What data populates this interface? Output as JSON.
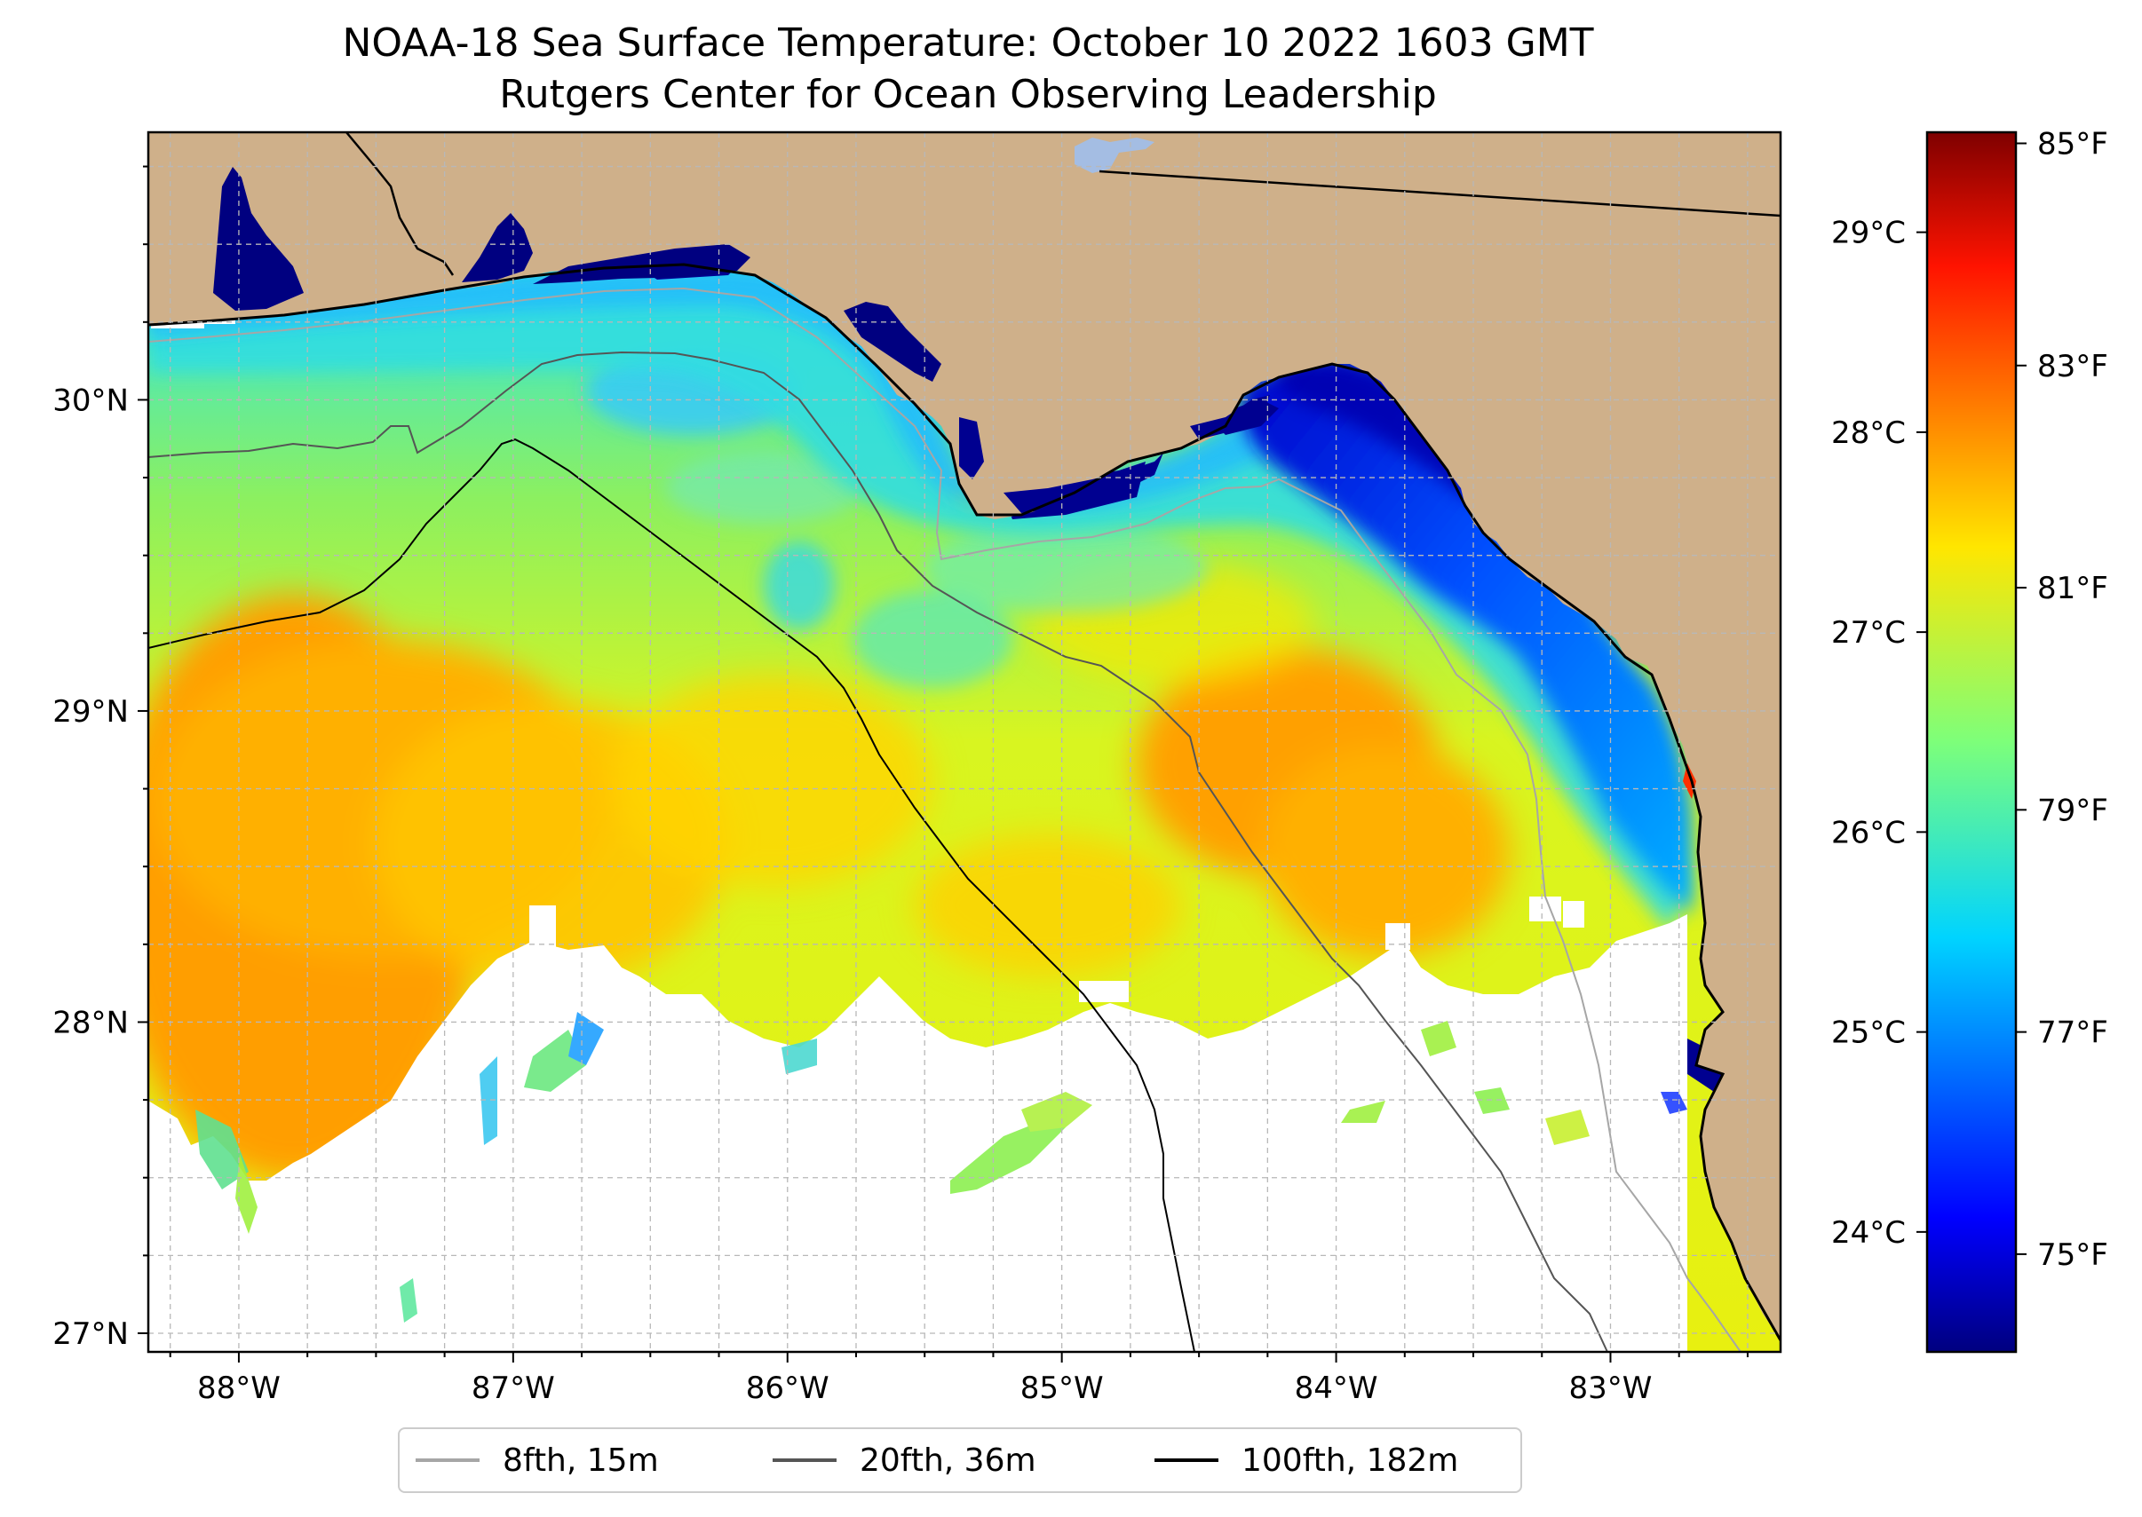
{
  "title": {
    "line1": "NOAA-18 Sea Surface Temperature: October 10 2022 1603 GMT",
    "line2": "Rutgers Center for Ocean Observing Leadership"
  },
  "colors": {
    "land": "#cfb08a",
    "no_data": "#ffffff",
    "lake": "#a4bde3",
    "grid": "#b8b8b8"
  },
  "map": {
    "lon_range": [
      -88.33,
      -82.38
    ],
    "lat_range": [
      26.94,
      30.86
    ],
    "lon_ticks": [
      {
        "value": -88,
        "label": "88°W"
      },
      {
        "value": -87,
        "label": "87°W"
      },
      {
        "value": -86,
        "label": "86°W"
      },
      {
        "value": -85,
        "label": "85°W"
      },
      {
        "value": -84,
        "label": "84°W"
      },
      {
        "value": -83,
        "label": "83°W"
      }
    ],
    "lat_ticks": [
      {
        "value": 27,
        "label": "27°N"
      },
      {
        "value": 28,
        "label": "28°N"
      },
      {
        "value": 29,
        "label": "29°N"
      },
      {
        "value": 30,
        "label": "30°N"
      }
    ]
  },
  "colorbar": {
    "range_c": [
      23.4,
      29.5
    ],
    "colormap": "jet",
    "celsius_ticks": [
      {
        "value": 24,
        "label": "24°C"
      },
      {
        "value": 25,
        "label": "25°C"
      },
      {
        "value": 26,
        "label": "26°C"
      },
      {
        "value": 27,
        "label": "27°C"
      },
      {
        "value": 28,
        "label": "28°C"
      },
      {
        "value": 29,
        "label": "29°C"
      }
    ],
    "fahrenheit_ticks": [
      {
        "value": 75,
        "label": "75°F"
      },
      {
        "value": 77,
        "label": "77°F"
      },
      {
        "value": 79,
        "label": "79°F"
      },
      {
        "value": 81,
        "label": "81°F"
      },
      {
        "value": 83,
        "label": "83°F"
      },
      {
        "value": 85,
        "label": "85°F"
      }
    ]
  },
  "legend": [
    {
      "label": "8fth, 15m",
      "color": "#a6a6a6"
    },
    {
      "label": "20fth, 36m",
      "color": "#555555"
    },
    {
      "label": "100fth, 182m",
      "color": "#000000"
    }
  ]
}
